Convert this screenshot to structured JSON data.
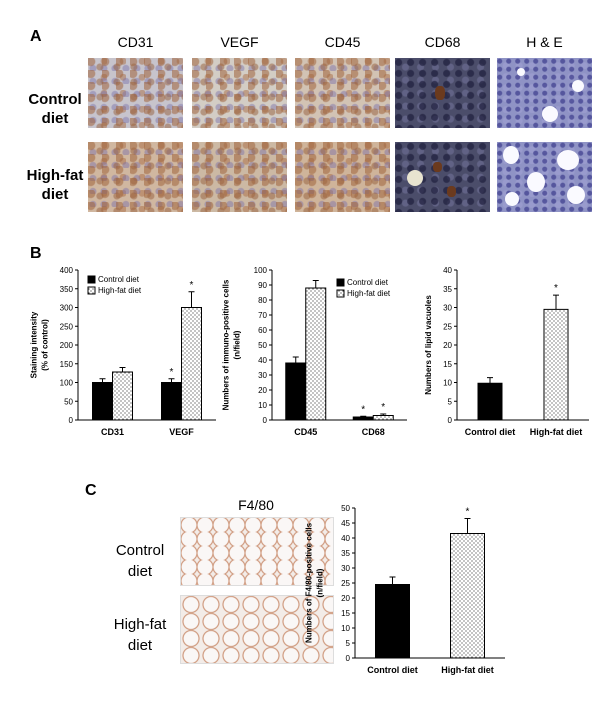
{
  "panel_a": {
    "letter": "A",
    "columns": [
      "CD31",
      "VEGF",
      "CD45",
      "CD68",
      "H & E"
    ],
    "rows": [
      [
        "Control",
        "diet"
      ],
      [
        "High-fat",
        "diet"
      ]
    ]
  },
  "panel_b": {
    "letter": "B"
  },
  "panel_c": {
    "letter": "C",
    "image_title": "F4/80",
    "rows": [
      [
        "Control",
        "diet"
      ],
      [
        "High-fat",
        "diet"
      ]
    ]
  },
  "colors": {
    "control": "#000000",
    "highfat": "#ffffff",
    "stipple": "#333333"
  },
  "chart_data": [
    {
      "type": "bar",
      "id": "b1",
      "categories": [
        "CD31",
        "VEGF"
      ],
      "series": [
        {
          "name": "Control diet",
          "values": [
            100,
            100
          ],
          "errors": [
            10,
            10
          ],
          "style": "solid"
        },
        {
          "name": "High-fat diet",
          "values": [
            128,
            300
          ],
          "errors": [
            12,
            42
          ],
          "style": "dotted"
        }
      ],
      "significance": [
        [
          false,
          true
        ],
        [
          false,
          true
        ]
      ],
      "ylabel": [
        "Staining intensity",
        "(% of control)"
      ],
      "ylim": [
        0,
        400
      ],
      "yticks": [
        0,
        50,
        100,
        150,
        200,
        250,
        300,
        350,
        400
      ],
      "legend": "top-left"
    },
    {
      "type": "bar",
      "id": "b2",
      "categories": [
        "CD45",
        "CD68"
      ],
      "series": [
        {
          "name": "Control diet",
          "values": [
            38,
            2
          ],
          "errors": [
            4,
            0.5
          ],
          "style": "solid"
        },
        {
          "name": "High-fat diet",
          "values": [
            88,
            3
          ],
          "errors": [
            5,
            1
          ],
          "style": "dotted"
        }
      ],
      "significance": [
        [
          false,
          true
        ],
        [
          false,
          true
        ]
      ],
      "ylabel": [
        "Numbers of immuno-positive cells",
        "(n/field)"
      ],
      "ylim": [
        0,
        100
      ],
      "yticks": [
        0,
        10,
        20,
        30,
        40,
        50,
        60,
        70,
        80,
        90,
        100
      ],
      "legend": "top-right"
    },
    {
      "type": "bar",
      "id": "b3",
      "categories": [
        "Control diet",
        "High-fat diet"
      ],
      "values": [
        9.8,
        29.5
      ],
      "errors": [
        1.5,
        3.8
      ],
      "styles": [
        "solid",
        "dotted"
      ],
      "significance": [
        false,
        true
      ],
      "ylabel": [
        "Numbers of lipid vacuoles"
      ],
      "ylim": [
        0,
        40
      ],
      "yticks": [
        0,
        5,
        10,
        15,
        20,
        25,
        30,
        35,
        40
      ]
    },
    {
      "type": "bar",
      "id": "c1",
      "categories": [
        "Control diet",
        "High-fat diet"
      ],
      "values": [
        24.5,
        41.5
      ],
      "errors": [
        2.5,
        5
      ],
      "styles": [
        "solid",
        "dotted"
      ],
      "significance": [
        false,
        true
      ],
      "ylabel": [
        "Numbers of F4/80-positive cells",
        "(n/field)"
      ],
      "ylim": [
        0,
        50
      ],
      "yticks": [
        0,
        5,
        10,
        15,
        20,
        25,
        30,
        35,
        40,
        45,
        50
      ]
    }
  ]
}
